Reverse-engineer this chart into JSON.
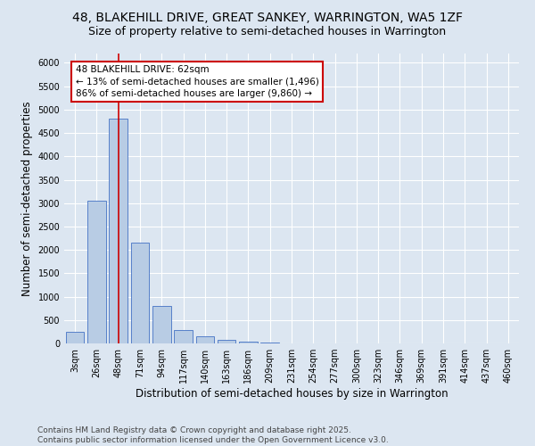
{
  "title_line1": "48, BLAKEHILL DRIVE, GREAT SANKEY, WARRINGTON, WA5 1ZF",
  "title_line2": "Size of property relative to semi-detached houses in Warrington",
  "xlabel": "Distribution of semi-detached houses by size in Warrington",
  "ylabel": "Number of semi-detached properties",
  "footnote": "Contains HM Land Registry data © Crown copyright and database right 2025.\nContains public sector information licensed under the Open Government Licence v3.0.",
  "categories": [
    "3sqm",
    "26sqm",
    "48sqm",
    "71sqm",
    "94sqm",
    "117sqm",
    "140sqm",
    "163sqm",
    "186sqm",
    "209sqm",
    "231sqm",
    "254sqm",
    "277sqm",
    "300sqm",
    "323sqm",
    "346sqm",
    "369sqm",
    "391sqm",
    "414sqm",
    "437sqm",
    "460sqm"
  ],
  "values": [
    250,
    3050,
    4800,
    2150,
    800,
    290,
    155,
    85,
    45,
    10,
    5,
    3,
    2,
    1,
    0,
    0,
    0,
    0,
    0,
    0,
    0
  ],
  "bar_color": "#b8cce4",
  "bar_edge_color": "#4472c4",
  "annotation_text": "48 BLAKEHILL DRIVE: 62sqm\n← 13% of semi-detached houses are smaller (1,496)\n86% of semi-detached houses are larger (9,860) →",
  "annotation_box_color": "#ffffff",
  "annotation_box_edge_color": "#cc0000",
  "vline_color": "#cc0000",
  "vline_x": 2.0,
  "ylim": [
    0,
    6200
  ],
  "yticks": [
    0,
    500,
    1000,
    1500,
    2000,
    2500,
    3000,
    3500,
    4000,
    4500,
    5000,
    5500,
    6000
  ],
  "background_color": "#dce6f1",
  "grid_color": "#ffffff",
  "title_fontsize": 10,
  "subtitle_fontsize": 9,
  "label_fontsize": 8.5,
  "tick_fontsize": 7,
  "annotation_fontsize": 7.5,
  "footnote_fontsize": 6.5
}
